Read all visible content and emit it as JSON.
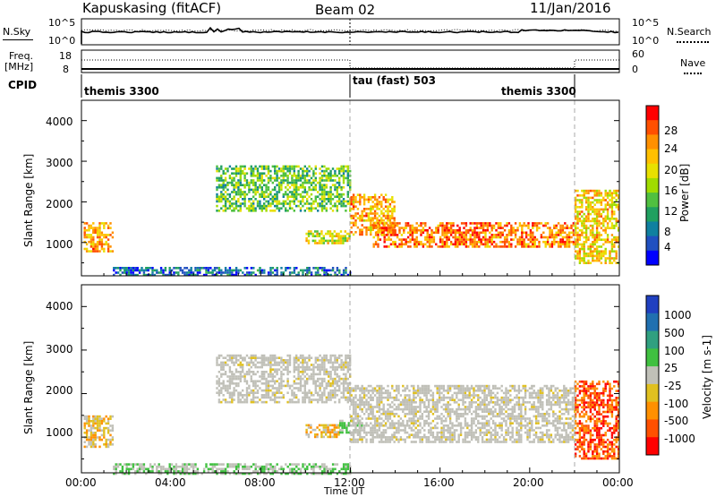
{
  "header": {
    "station": "Kapuskasing (fitACF)",
    "beam": "Beam 02",
    "date": "11/Jan/2016"
  },
  "top_panels": {
    "nsky_label": "N.Sky",
    "nsky_ticks": [
      "10^5",
      "10^0"
    ],
    "nsearch_label": "N.Search",
    "nsearch_ticks": [
      "10^5",
      "10^0"
    ],
    "freq_label_line1": "Freq.",
    "freq_label_line2": "[MHz]",
    "freq_ticks": [
      "18",
      "8"
    ],
    "nave_label": "Nave",
    "nave_ticks": [
      "60",
      "0"
    ],
    "cpid_label": "CPID",
    "cpid_segments": [
      "themis 3300",
      "tau (fast) 503",
      "themis 3300"
    ]
  },
  "panels": {
    "y_label": "Slant Range [km]",
    "y_ticks": [
      "4000",
      "3000",
      "2000",
      "1000"
    ],
    "x_ticks": [
      "00:00",
      "04:00",
      "08:00",
      "12:00",
      "16:00",
      "20:00",
      "00:00"
    ],
    "x_label": "Time UT"
  },
  "power_bar": {
    "label": "Power [dB]",
    "ticks": [
      "28",
      "24",
      "20",
      "16",
      "12",
      "8",
      "4"
    ],
    "colors": [
      "#ff0000",
      "#ff5000",
      "#ff9000",
      "#ffc000",
      "#e8e000",
      "#a0dc00",
      "#50c040",
      "#20a060",
      "#1080a0",
      "#2050c0",
      "#0000ff"
    ]
  },
  "velocity_bar": {
    "label": "Velocity [m s-1]",
    "ticks": [
      "1000",
      "500",
      "100",
      "25",
      "-25",
      "-100",
      "-500",
      "-1000"
    ],
    "colors": [
      "#2040c0",
      "#2070b0",
      "#30a080",
      "#40c040",
      "#c0c0b8",
      "#e0c020",
      "#ff9000",
      "#ff5000",
      "#ff0000"
    ]
  },
  "chart_data": [
    {
      "type": "heatmap",
      "title": "Kapuskasing (fitACF) Beam 02 11/Jan/2016",
      "quantity": "Power",
      "unit": "dB",
      "xlabel": "Time UT",
      "ylabel": "Slant Range [km]",
      "xlim_hours": [
        0,
        24
      ],
      "ylim_km": [
        180,
        4500
      ],
      "colorbar_ticks": [
        4,
        8,
        12,
        16,
        20,
        24,
        28
      ],
      "echo_regions": [
        {
          "t_start": 0.1,
          "t_end": 1.4,
          "r_low": 800,
          "r_high": 1500,
          "power": 22
        },
        {
          "t_start": 1.4,
          "t_end": 12.0,
          "r_low": 180,
          "r_high": 400,
          "power": 8
        },
        {
          "t_start": 6.0,
          "t_end": 12.0,
          "r_low": 1800,
          "r_high": 2900,
          "power": 14
        },
        {
          "t_start": 10.0,
          "t_end": 12.0,
          "r_low": 1000,
          "r_high": 1300,
          "power": 18
        },
        {
          "t_start": 12.0,
          "t_end": 14.0,
          "r_low": 1200,
          "r_high": 2200,
          "power": 22
        },
        {
          "t_start": 13.0,
          "t_end": 22.0,
          "r_low": 900,
          "r_high": 1500,
          "power": 24
        },
        {
          "t_start": 22.0,
          "t_end": 24.0,
          "r_low": 500,
          "r_high": 2300,
          "power": 20
        }
      ]
    },
    {
      "type": "heatmap",
      "quantity": "Velocity",
      "unit": "m s-1",
      "xlabel": "Time UT",
      "ylabel": "Slant Range [km]",
      "xlim_hours": [
        0,
        24
      ],
      "ylim_km": [
        180,
        4500
      ],
      "colorbar_ticks": [
        1000,
        500,
        100,
        25,
        -25,
        -100,
        -500,
        -1000
      ],
      "echo_regions": [
        {
          "t_start": 0.1,
          "t_end": 1.4,
          "r_low": 800,
          "r_high": 1500,
          "velocity": -100
        },
        {
          "t_start": 1.4,
          "t_end": 12.0,
          "r_low": 180,
          "r_high": 400,
          "velocity": 100
        },
        {
          "t_start": 6.0,
          "t_end": 12.0,
          "r_low": 1800,
          "r_high": 2900,
          "velocity": 0
        },
        {
          "t_start": 10.0,
          "t_end": 11.5,
          "r_low": 1000,
          "r_high": 1300,
          "velocity": -100
        },
        {
          "t_start": 11.5,
          "t_end": 12.5,
          "r_low": 1100,
          "r_high": 1400,
          "velocity": 100
        },
        {
          "t_start": 12.0,
          "t_end": 22.0,
          "r_low": 900,
          "r_high": 2200,
          "velocity": 0
        },
        {
          "t_start": 22.0,
          "t_end": 24.0,
          "r_low": 500,
          "r_high": 2300,
          "velocity": -500
        }
      ]
    }
  ]
}
